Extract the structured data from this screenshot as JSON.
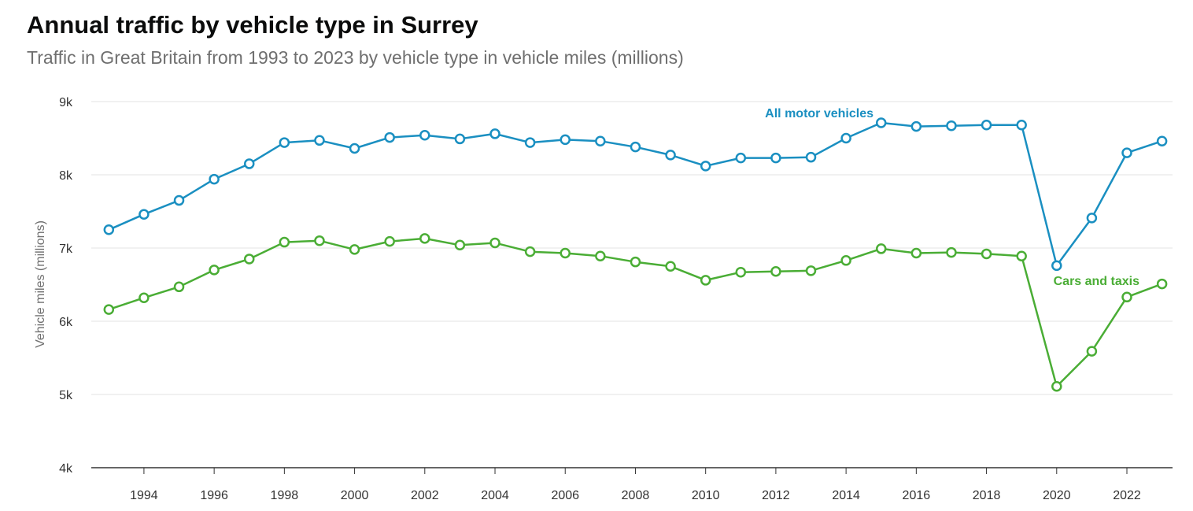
{
  "chart_data": {
    "type": "line",
    "title": "Annual traffic by vehicle type in Surrey",
    "subtitle": "Traffic in Great Britain from 1993 to 2023 by vehicle type in vehicle miles (millions)",
    "ylabel": "Vehicle miles (millions)",
    "xlabel": "",
    "ylim": [
      4000,
      9000
    ],
    "xlim": [
      1993,
      2023
    ],
    "y_ticks": [
      4000,
      5000,
      6000,
      7000,
      8000,
      9000
    ],
    "y_tick_labels": [
      "4k",
      "5k",
      "6k",
      "7k",
      "8k",
      "9k"
    ],
    "x_ticks": [
      1994,
      1996,
      1998,
      2000,
      2002,
      2004,
      2006,
      2008,
      2010,
      2012,
      2014,
      2016,
      2018,
      2020,
      2022
    ],
    "x_tick_labels": [
      "1994",
      "1996",
      "1998",
      "2000",
      "2002",
      "2004",
      "2006",
      "2008",
      "2010",
      "2012",
      "2014",
      "2016",
      "2018",
      "2020",
      "2022"
    ],
    "grid": true,
    "legend": "inline labels",
    "x": [
      1993,
      1994,
      1995,
      1996,
      1997,
      1998,
      1999,
      2000,
      2001,
      2002,
      2003,
      2004,
      2005,
      2006,
      2007,
      2008,
      2009,
      2010,
      2011,
      2012,
      2013,
      2014,
      2015,
      2016,
      2017,
      2018,
      2019,
      2020,
      2021,
      2022,
      2023
    ],
    "series": [
      {
        "name": "All motor vehicles",
        "color": "#1a8fc1",
        "values": [
          7250,
          7460,
          7650,
          7940,
          8150,
          8440,
          8470,
          8360,
          8510,
          8540,
          8490,
          8560,
          8440,
          8480,
          8460,
          8380,
          8270,
          8120,
          8230,
          8230,
          8240,
          8500,
          8710,
          8660,
          8670,
          8680,
          8680,
          6760,
          7410,
          8300,
          8460
        ]
      },
      {
        "name": "Cars and taxis",
        "color": "#4aad35",
        "values": [
          6160,
          6320,
          6470,
          6700,
          6850,
          7080,
          7100,
          6980,
          7090,
          7130,
          7040,
          7070,
          6950,
          6930,
          6890,
          6810,
          6750,
          6560,
          6670,
          6680,
          6690,
          6830,
          6990,
          6930,
          6940,
          6920,
          6890,
          5110,
          5590,
          6330,
          6510
        ]
      }
    ]
  }
}
